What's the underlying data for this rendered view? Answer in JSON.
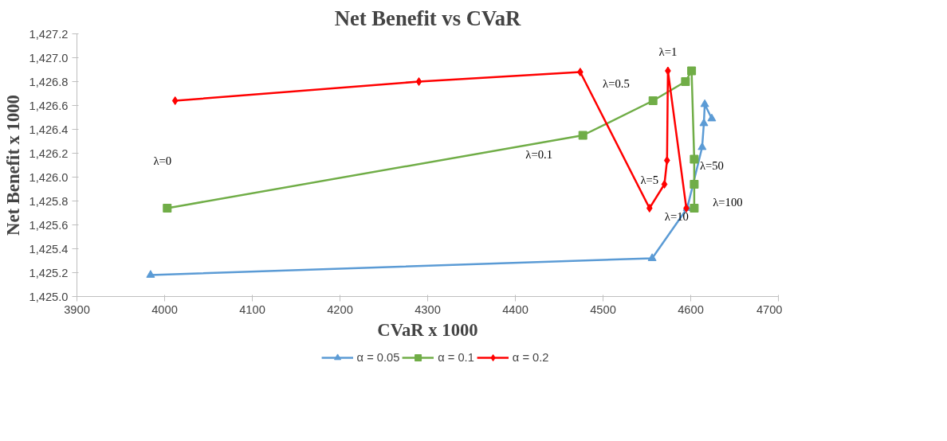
{
  "chart_data": {
    "type": "line",
    "title": "Net Benefit vs CVaR",
    "xlabel": "CVaR x 1000",
    "ylabel": "Net Benefit x 1000",
    "xlim": [
      3900,
      4700
    ],
    "xticks": [
      3900,
      4000,
      4100,
      4200,
      4300,
      4400,
      4500,
      4600,
      4700
    ],
    "ylim": [
      1425.0,
      1427.2
    ],
    "yticks": [
      {
        "value": 1425.0,
        "label": "1,425.0"
      },
      {
        "value": 1425.2,
        "label": "1,425.2"
      },
      {
        "value": 1425.4,
        "label": "1,425.4"
      },
      {
        "value": 1425.6,
        "label": "1,425.6"
      },
      {
        "value": 1425.8,
        "label": "1,425.8"
      },
      {
        "value": 1426.0,
        "label": "1,426.0"
      },
      {
        "value": 1426.2,
        "label": "1,426.2"
      },
      {
        "value": 1426.4,
        "label": "1,426.4"
      },
      {
        "value": 1426.6,
        "label": "1,426.6"
      },
      {
        "value": 1426.8,
        "label": "1,426.8"
      },
      {
        "value": 1427.0,
        "label": "1,427.0"
      },
      {
        "value": 1427.2,
        "label": "1,427.2"
      }
    ],
    "grid": false,
    "legend": "bottom",
    "series": [
      {
        "name": "α = 0.05",
        "color": "#5b9bd5",
        "marker": "triangle",
        "x": [
          3984,
          4556,
          4596,
          4613,
          4615,
          4616,
          4624
        ],
        "values": [
          1425.18,
          1425.32,
          1425.74,
          1426.25,
          1426.45,
          1426.61,
          1426.49
        ]
      },
      {
        "name": "α = 0.1",
        "color": "#70ad47",
        "marker": "square",
        "x": [
          4003,
          4477,
          4557,
          4594,
          4601,
          4604,
          4604,
          4604
        ],
        "values": [
          1425.74,
          1426.35,
          1426.64,
          1426.8,
          1426.89,
          1426.15,
          1425.94,
          1425.74
        ]
      },
      {
        "name": "α = 0.2",
        "color": "#ff0000",
        "marker": "diamond",
        "x": [
          4012,
          4290,
          4474,
          4553,
          4570,
          4573,
          4574,
          4595
        ],
        "values": [
          1426.64,
          1426.8,
          1426.88,
          1425.74,
          1425.94,
          1426.14,
          1426.89,
          1425.74
        ]
      }
    ],
    "annotations": [
      "λ=0",
      {
        "text": "λ=0.1",
        "x": 4477,
        "y": 1426.35
      },
      {
        "text": "λ=0.5",
        "x": 4474,
        "y": 1426.88
      },
      {
        "text": "λ=1",
        "x": 4574,
        "y": 1426.89
      },
      {
        "text": "λ=5",
        "x": 4553,
        "y": 1425.74
      },
      {
        "text": "λ=10",
        "x": 4553,
        "y": 1425.74
      },
      {
        "text": "λ=50",
        "x": 4604,
        "y": 1426.15
      },
      {
        "text": "λ=100",
        "x": 4604,
        "y": 1425.74
      }
    ]
  }
}
